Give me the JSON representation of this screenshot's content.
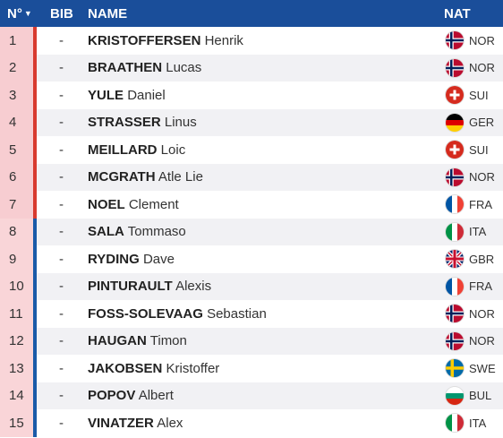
{
  "header": {
    "no": "N°",
    "bib": "BIB",
    "name": "NAME",
    "nat": "NAT"
  },
  "colors": {
    "header_bg": "#1a4e9a",
    "group1_bar": "#d83a2f",
    "group1_bg": "#f7cdd1",
    "group2_bar": "#1a5aa8",
    "group2_bg": "#f9d5d8"
  },
  "rows": [
    {
      "no": "1",
      "bib": "-",
      "surname": "KRISTOFFERSEN",
      "given": "Henrik",
      "nat": "NOR",
      "flag": "norway-flag-icon",
      "group": 1
    },
    {
      "no": "2",
      "bib": "-",
      "surname": "BRAATHEN",
      "given": "Lucas",
      "nat": "NOR",
      "flag": "norway-flag-icon",
      "group": 1
    },
    {
      "no": "3",
      "bib": "-",
      "surname": "YULE",
      "given": "Daniel",
      "nat": "SUI",
      "flag": "switzerland-flag-icon",
      "group": 1
    },
    {
      "no": "4",
      "bib": "-",
      "surname": "STRASSER",
      "given": "Linus",
      "nat": "GER",
      "flag": "germany-flag-icon",
      "group": 1
    },
    {
      "no": "5",
      "bib": "-",
      "surname": "MEILLARD",
      "given": "Loic",
      "nat": "SUI",
      "flag": "switzerland-flag-icon",
      "group": 1
    },
    {
      "no": "6",
      "bib": "-",
      "surname": "MCGRATH",
      "given": "Atle Lie",
      "nat": "NOR",
      "flag": "norway-flag-icon",
      "group": 1
    },
    {
      "no": "7",
      "bib": "-",
      "surname": "NOEL",
      "given": "Clement",
      "nat": "FRA",
      "flag": "france-flag-icon",
      "group": 1
    },
    {
      "no": "8",
      "bib": "-",
      "surname": "SALA",
      "given": "Tommaso",
      "nat": "ITA",
      "flag": "italy-flag-icon",
      "group": 2
    },
    {
      "no": "9",
      "bib": "-",
      "surname": "RYDING",
      "given": "Dave",
      "nat": "GBR",
      "flag": "uk-flag-icon",
      "group": 2
    },
    {
      "no": "10",
      "bib": "-",
      "surname": "PINTURAULT",
      "given": "Alexis",
      "nat": "FRA",
      "flag": "france-flag-icon",
      "group": 2
    },
    {
      "no": "11",
      "bib": "-",
      "surname": "FOSS-SOLEVAAG",
      "given": "Sebastian",
      "nat": "NOR",
      "flag": "norway-flag-icon",
      "group": 2
    },
    {
      "no": "12",
      "bib": "-",
      "surname": "HAUGAN",
      "given": "Timon",
      "nat": "NOR",
      "flag": "norway-flag-icon",
      "group": 2
    },
    {
      "no": "13",
      "bib": "-",
      "surname": "JAKOBSEN",
      "given": "Kristoffer",
      "nat": "SWE",
      "flag": "sweden-flag-icon",
      "group": 2
    },
    {
      "no": "14",
      "bib": "-",
      "surname": "POPOV",
      "given": "Albert",
      "nat": "BUL",
      "flag": "bulgaria-flag-icon",
      "group": 2
    },
    {
      "no": "15",
      "bib": "-",
      "surname": "VINATZER",
      "given": "Alex",
      "nat": "ITA",
      "flag": "italy-flag-icon",
      "group": 2
    }
  ]
}
